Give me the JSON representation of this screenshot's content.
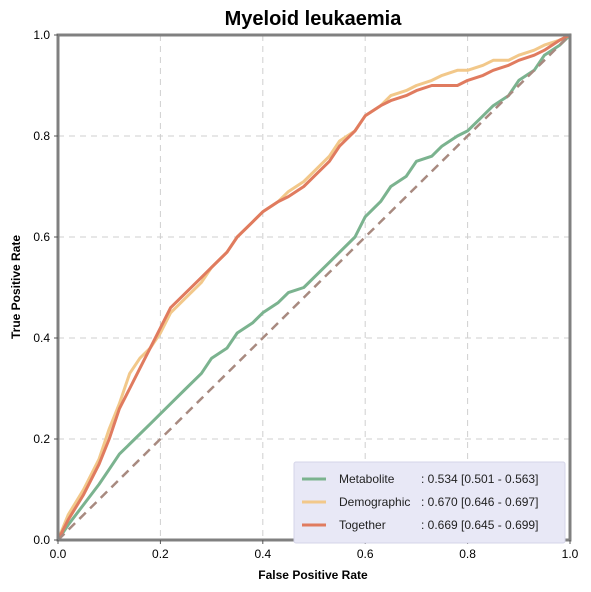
{
  "chart_data": {
    "type": "line",
    "title": "Myeloid leukaemia",
    "xlabel": "False Positive Rate",
    "ylabel": "True Positive Rate",
    "xlim": [
      0,
      1
    ],
    "ylim": [
      0,
      1
    ],
    "xticks": [
      "0.0",
      "0.2",
      "0.4",
      "0.6",
      "0.8",
      "1.0"
    ],
    "yticks": [
      "0.0",
      "0.2",
      "0.4",
      "0.6",
      "0.8",
      "1.0"
    ],
    "grid": true,
    "legend_position": "bottom-right",
    "series": [
      {
        "name": "Metabolite",
        "label_value": ": 0.534 [0.501 - 0.563]",
        "color": "#7bb38f",
        "x": [
          0,
          0.02,
          0.05,
          0.08,
          0.1,
          0.12,
          0.15,
          0.18,
          0.2,
          0.23,
          0.25,
          0.28,
          0.3,
          0.33,
          0.35,
          0.38,
          0.4,
          0.43,
          0.45,
          0.48,
          0.5,
          0.53,
          0.55,
          0.58,
          0.6,
          0.63,
          0.65,
          0.68,
          0.7,
          0.73,
          0.75,
          0.78,
          0.8,
          0.83,
          0.85,
          0.88,
          0.9,
          0.93,
          0.95,
          0.98,
          1.0
        ],
        "y": [
          0,
          0.03,
          0.07,
          0.11,
          0.14,
          0.17,
          0.2,
          0.23,
          0.25,
          0.28,
          0.3,
          0.33,
          0.36,
          0.38,
          0.41,
          0.43,
          0.45,
          0.47,
          0.49,
          0.5,
          0.52,
          0.55,
          0.57,
          0.6,
          0.64,
          0.67,
          0.7,
          0.72,
          0.75,
          0.76,
          0.78,
          0.8,
          0.81,
          0.84,
          0.86,
          0.88,
          0.91,
          0.93,
          0.96,
          0.98,
          1.0
        ]
      },
      {
        "name": "Demographic",
        "label_value": ": 0.670 [0.646 - 0.697]",
        "color": "#f2c88a",
        "x": [
          0,
          0.02,
          0.05,
          0.08,
          0.1,
          0.12,
          0.14,
          0.16,
          0.18,
          0.2,
          0.22,
          0.25,
          0.28,
          0.3,
          0.33,
          0.35,
          0.38,
          0.4,
          0.43,
          0.45,
          0.48,
          0.5,
          0.53,
          0.55,
          0.58,
          0.6,
          0.63,
          0.65,
          0.68,
          0.7,
          0.73,
          0.75,
          0.78,
          0.8,
          0.83,
          0.85,
          0.88,
          0.9,
          0.93,
          0.95,
          0.98,
          1.0
        ],
        "y": [
          0,
          0.05,
          0.1,
          0.16,
          0.22,
          0.27,
          0.33,
          0.36,
          0.38,
          0.41,
          0.45,
          0.48,
          0.51,
          0.54,
          0.57,
          0.6,
          0.63,
          0.65,
          0.67,
          0.69,
          0.71,
          0.73,
          0.76,
          0.79,
          0.81,
          0.84,
          0.86,
          0.88,
          0.89,
          0.9,
          0.91,
          0.92,
          0.93,
          0.93,
          0.94,
          0.95,
          0.95,
          0.96,
          0.97,
          0.98,
          0.99,
          1.0
        ]
      },
      {
        "name": "Together",
        "label_value": ": 0.669 [0.645 - 0.699]",
        "color": "#e07b5f",
        "x": [
          0,
          0.02,
          0.05,
          0.08,
          0.1,
          0.12,
          0.14,
          0.16,
          0.18,
          0.2,
          0.22,
          0.25,
          0.28,
          0.3,
          0.33,
          0.35,
          0.38,
          0.4,
          0.43,
          0.45,
          0.48,
          0.5,
          0.53,
          0.55,
          0.58,
          0.6,
          0.63,
          0.65,
          0.68,
          0.7,
          0.73,
          0.75,
          0.78,
          0.8,
          0.83,
          0.85,
          0.88,
          0.9,
          0.93,
          0.95,
          0.98,
          1.0
        ],
        "y": [
          0,
          0.04,
          0.09,
          0.15,
          0.2,
          0.26,
          0.3,
          0.34,
          0.38,
          0.42,
          0.46,
          0.49,
          0.52,
          0.54,
          0.57,
          0.6,
          0.63,
          0.65,
          0.67,
          0.68,
          0.7,
          0.72,
          0.75,
          0.78,
          0.81,
          0.84,
          0.86,
          0.87,
          0.88,
          0.89,
          0.9,
          0.9,
          0.9,
          0.91,
          0.92,
          0.93,
          0.94,
          0.95,
          0.96,
          0.97,
          0.99,
          1.0
        ]
      },
      {
        "name": "",
        "color": "#a88a80",
        "dashed": true,
        "x": [
          0,
          1
        ],
        "y": [
          0,
          1
        ]
      }
    ]
  }
}
